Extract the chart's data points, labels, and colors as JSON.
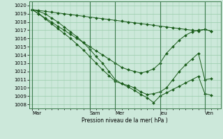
{
  "background_color": "#cce8da",
  "grid_color": "#99ccaa",
  "line_color": "#1a5c1a",
  "marker": "D",
  "marker_size": 2.0,
  "xlabel_text": "Pression niveau de la mer( hPa )",
  "ylim": [
    1007.5,
    1020.5
  ],
  "yticks": [
    1008,
    1009,
    1010,
    1011,
    1012,
    1013,
    1014,
    1015,
    1016,
    1017,
    1018,
    1019,
    1020
  ],
  "x_day_labels": [
    "Mar",
    "Sam",
    "Mer",
    "Jeu",
    "Ven"
  ],
  "x_day_positions": [
    0,
    9,
    13,
    20,
    27
  ],
  "x_minor_positions": [
    0,
    1,
    2,
    3,
    4,
    5,
    6,
    7,
    8,
    9,
    10,
    11,
    12,
    13,
    14,
    15,
    16,
    17,
    18,
    19,
    20,
    21,
    22,
    23,
    24,
    25,
    26,
    27,
    28,
    29
  ],
  "xlim": [
    -0.5,
    29.5
  ],
  "lines": [
    {
      "x": [
        0,
        1,
        2,
        3,
        4,
        5,
        6,
        7,
        8,
        9,
        10,
        11,
        12,
        13,
        14,
        15,
        16,
        17,
        18,
        19,
        20,
        21,
        22,
        23,
        24,
        25,
        26,
        27,
        28
      ],
      "y": [
        1019.5,
        1019.4,
        1019.3,
        1019.2,
        1019.1,
        1019.0,
        1018.9,
        1018.8,
        1018.7,
        1018.6,
        1018.5,
        1018.4,
        1018.3,
        1018.2,
        1018.1,
        1018.0,
        1017.9,
        1017.8,
        1017.7,
        1017.6,
        1017.5,
        1017.4,
        1017.3,
        1017.2,
        1017.1,
        1017.0,
        1016.9,
        1017.1,
        1016.9
      ]
    },
    {
      "x": [
        0,
        1,
        2,
        3,
        4,
        5,
        6,
        7,
        8,
        9,
        10,
        11,
        12,
        13,
        14,
        15,
        16,
        17,
        18,
        19,
        20,
        21,
        22,
        23,
        24,
        25,
        26,
        27,
        28
      ],
      "y": [
        1019.5,
        1019.0,
        1018.5,
        1018.0,
        1017.5,
        1017.0,
        1016.5,
        1016.0,
        1015.5,
        1015.0,
        1014.5,
        1014.0,
        1013.5,
        1013.0,
        1012.5,
        1012.2,
        1012.0,
        1011.8,
        1012.0,
        1012.3,
        1013.0,
        1014.2,
        1015.0,
        1015.8,
        1016.4,
        1016.8,
        1017.0,
        1017.1,
        1016.9
      ]
    },
    {
      "x": [
        0,
        1,
        2,
        3,
        4,
        5,
        6,
        7,
        8,
        9,
        10,
        11,
        12,
        13,
        14,
        15,
        16,
        17,
        18,
        19,
        20,
        21,
        22,
        23,
        24,
        25,
        26,
        27,
        28
      ],
      "y": [
        1019.5,
        1019.0,
        1018.4,
        1017.8,
        1017.2,
        1016.6,
        1016.0,
        1015.3,
        1014.6,
        1013.8,
        1013.0,
        1012.2,
        1011.5,
        1010.8,
        1010.5,
        1010.3,
        1010.0,
        1009.5,
        1009.2,
        1009.3,
        1009.5,
        1010.0,
        1011.0,
        1012.0,
        1012.8,
        1013.5,
        1014.2,
        1011.0,
        1011.1
      ]
    },
    {
      "x": [
        0,
        1,
        2,
        3,
        4,
        5,
        6,
        7,
        8,
        9,
        10,
        11,
        12,
        13,
        14,
        15,
        16,
        17,
        18,
        19,
        20,
        21,
        22,
        23,
        24,
        25,
        26,
        27,
        28
      ],
      "y": [
        1019.5,
        1019.3,
        1019.0,
        1018.5,
        1018.0,
        1017.4,
        1016.8,
        1016.2,
        1015.5,
        1014.7,
        1013.8,
        1013.0,
        1012.0,
        1011.0,
        1010.5,
        1010.1,
        1009.7,
        1009.2,
        1008.8,
        1008.2,
        1009.0,
        1009.4,
        1009.8,
        1010.2,
        1010.6,
        1011.0,
        1011.4,
        1009.3,
        1009.1
      ]
    }
  ]
}
